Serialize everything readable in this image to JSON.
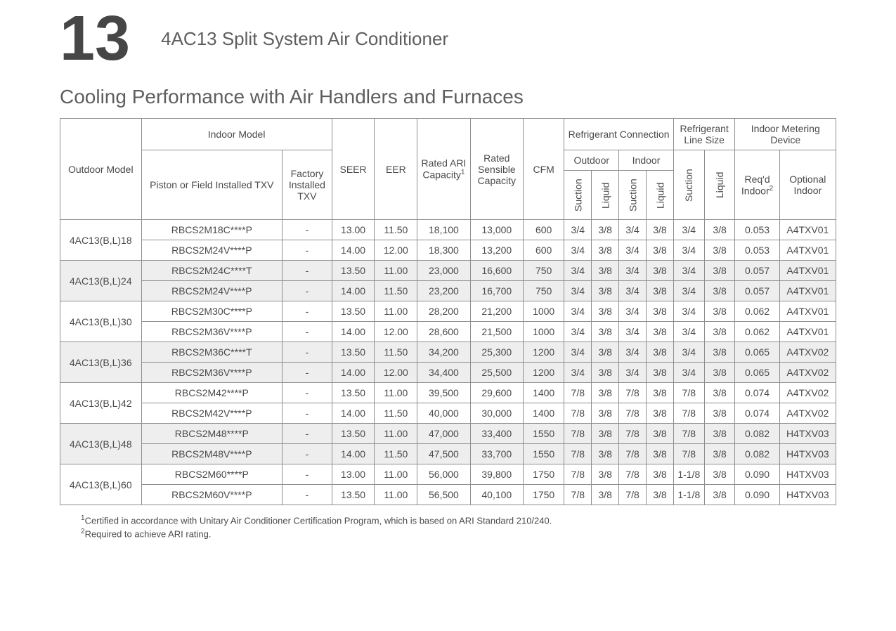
{
  "header": {
    "chapter_number": "13",
    "product_title": "4AC13   Split System Air Conditioner"
  },
  "section_title": "Cooling Performance with Air Handlers and Furnaces",
  "columns": {
    "outdoor_model": "Outdoor Model",
    "indoor_model": "Indoor Model",
    "piston_txv": "Piston or Field Installed TXV",
    "factory_txv": "Factory Installed TXV",
    "seer": "SEER",
    "eer": "EER",
    "rated_ari": "Rated ARI Capacity",
    "rated_ari_sup": "1",
    "rated_sensible": "Rated Sensible Capacity",
    "cfm": "CFM",
    "refrig_conn": "Refrigerant Connection",
    "outdoor": "Outdoor",
    "indoor": "Indoor",
    "refrig_line_size": "Refrigerant Line Size",
    "suction": "Suction",
    "liquid": "Liquid",
    "indoor_metering": "Indoor Metering Device",
    "reqd_indoor": "Req'd Indoor",
    "reqd_indoor_sup": "2",
    "optional_indoor": "Optional Indoor"
  },
  "groups": [
    {
      "outdoor": "4AC13(B,L)18",
      "shade": false,
      "rows": [
        {
          "indoor": "RBCS2M18C****P",
          "txv": "-",
          "seer": "13.00",
          "eer": "11.50",
          "ari": "18,100",
          "sens": "13,000",
          "cfm": "600",
          "oc_s": "3/4",
          "oc_l": "3/8",
          "ic_s": "3/4",
          "ic_l": "3/8",
          "ls_s": "3/4",
          "ls_l": "3/8",
          "req": "0.053",
          "opt": "A4TXV01"
        },
        {
          "indoor": "RBCS2M24V****P",
          "txv": "-",
          "seer": "14.00",
          "eer": "12.00",
          "ari": "18,300",
          "sens": "13,200",
          "cfm": "600",
          "oc_s": "3/4",
          "oc_l": "3/8",
          "ic_s": "3/4",
          "ic_l": "3/8",
          "ls_s": "3/4",
          "ls_l": "3/8",
          "req": "0.053",
          "opt": "A4TXV01"
        }
      ]
    },
    {
      "outdoor": "4AC13(B,L)24",
      "shade": true,
      "rows": [
        {
          "indoor": "RBCS2M24C****T",
          "txv": "-",
          "seer": "13.50",
          "eer": "11.00",
          "ari": "23,000",
          "sens": "16,600",
          "cfm": "750",
          "oc_s": "3/4",
          "oc_l": "3/8",
          "ic_s": "3/4",
          "ic_l": "3/8",
          "ls_s": "3/4",
          "ls_l": "3/8",
          "req": "0.057",
          "opt": "A4TXV01"
        },
        {
          "indoor": "RBCS2M24V****P",
          "txv": "-",
          "seer": "14.00",
          "eer": "11.50",
          "ari": "23,200",
          "sens": "16,700",
          "cfm": "750",
          "oc_s": "3/4",
          "oc_l": "3/8",
          "ic_s": "3/4",
          "ic_l": "3/8",
          "ls_s": "3/4",
          "ls_l": "3/8",
          "req": "0.057",
          "opt": "A4TXV01"
        }
      ]
    },
    {
      "outdoor": "4AC13(B,L)30",
      "shade": false,
      "rows": [
        {
          "indoor": "RBCS2M30C****P",
          "txv": "-",
          "seer": "13.50",
          "eer": "11.00",
          "ari": "28,200",
          "sens": "21,200",
          "cfm": "1000",
          "oc_s": "3/4",
          "oc_l": "3/8",
          "ic_s": "3/4",
          "ic_l": "3/8",
          "ls_s": "3/4",
          "ls_l": "3/8",
          "req": "0.062",
          "opt": "A4TXV01"
        },
        {
          "indoor": "RBCS2M36V****P",
          "txv": "-",
          "seer": "14.00",
          "eer": "12.00",
          "ari": "28,600",
          "sens": "21,500",
          "cfm": "1000",
          "oc_s": "3/4",
          "oc_l": "3/8",
          "ic_s": "3/4",
          "ic_l": "3/8",
          "ls_s": "3/4",
          "ls_l": "3/8",
          "req": "0.062",
          "opt": "A4TXV01"
        }
      ]
    },
    {
      "outdoor": "4AC13(B,L)36",
      "shade": true,
      "rows": [
        {
          "indoor": "RBCS2M36C****T",
          "txv": "-",
          "seer": "13.50",
          "eer": "11.50",
          "ari": "34,200",
          "sens": "25,300",
          "cfm": "1200",
          "oc_s": "3/4",
          "oc_l": "3/8",
          "ic_s": "3/4",
          "ic_l": "3/8",
          "ls_s": "3/4",
          "ls_l": "3/8",
          "req": "0.065",
          "opt": "A4TXV02"
        },
        {
          "indoor": "RBCS2M36V****P",
          "txv": "-",
          "seer": "14.00",
          "eer": "12.00",
          "ari": "34,400",
          "sens": "25,500",
          "cfm": "1200",
          "oc_s": "3/4",
          "oc_l": "3/8",
          "ic_s": "3/4",
          "ic_l": "3/8",
          "ls_s": "3/4",
          "ls_l": "3/8",
          "req": "0.065",
          "opt": "A4TXV02"
        }
      ]
    },
    {
      "outdoor": "4AC13(B,L)42",
      "shade": false,
      "rows": [
        {
          "indoor": "RBCS2M42****P",
          "txv": "-",
          "seer": "13.50",
          "eer": "11.00",
          "ari": "39,500",
          "sens": "29,600",
          "cfm": "1400",
          "oc_s": "7/8",
          "oc_l": "3/8",
          "ic_s": "7/8",
          "ic_l": "3/8",
          "ls_s": "7/8",
          "ls_l": "3/8",
          "req": "0.074",
          "opt": "A4TXV02"
        },
        {
          "indoor": "RBCS2M42V****P",
          "txv": "-",
          "seer": "14.00",
          "eer": "11.50",
          "ari": "40,000",
          "sens": "30,000",
          "cfm": "1400",
          "oc_s": "7/8",
          "oc_l": "3/8",
          "ic_s": "7/8",
          "ic_l": "3/8",
          "ls_s": "7/8",
          "ls_l": "3/8",
          "req": "0.074",
          "opt": "A4TXV02"
        }
      ]
    },
    {
      "outdoor": "4AC13(B,L)48",
      "shade": true,
      "rows": [
        {
          "indoor": "RBCS2M48****P",
          "txv": "-",
          "seer": "13.50",
          "eer": "11.00",
          "ari": "47,000",
          "sens": "33,400",
          "cfm": "1550",
          "oc_s": "7/8",
          "oc_l": "3/8",
          "ic_s": "7/8",
          "ic_l": "3/8",
          "ls_s": "7/8",
          "ls_l": "3/8",
          "req": "0.082",
          "opt": "H4TXV03"
        },
        {
          "indoor": "RBCS2M48V****P",
          "txv": "-",
          "seer": "14.00",
          "eer": "11.50",
          "ari": "47,500",
          "sens": "33,700",
          "cfm": "1550",
          "oc_s": "7/8",
          "oc_l": "3/8",
          "ic_s": "7/8",
          "ic_l": "3/8",
          "ls_s": "7/8",
          "ls_l": "3/8",
          "req": "0.082",
          "opt": "H4TXV03"
        }
      ]
    },
    {
      "outdoor": "4AC13(B,L)60",
      "shade": false,
      "rows": [
        {
          "indoor": "RBCS2M60****P",
          "txv": "-",
          "seer": "13.00",
          "eer": "11.00",
          "ari": "56,000",
          "sens": "39,800",
          "cfm": "1750",
          "oc_s": "7/8",
          "oc_l": "3/8",
          "ic_s": "7/8",
          "ic_l": "3/8",
          "ls_s": "1-1/8",
          "ls_l": "3/8",
          "req": "0.090",
          "opt": "H4TXV03"
        },
        {
          "indoor": "RBCS2M60V****P",
          "txv": "-",
          "seer": "13.50",
          "eer": "11.00",
          "ari": "56,500",
          "sens": "40,100",
          "cfm": "1750",
          "oc_s": "7/8",
          "oc_l": "3/8",
          "ic_s": "7/8",
          "ic_l": "3/8",
          "ls_s": "1-1/8",
          "ls_l": "3/8",
          "req": "0.090",
          "opt": "H4TXV03"
        }
      ]
    }
  ],
  "footnotes": {
    "n1_sup": "1",
    "n1": "Certified in accordance with Unitary Air Conditioner Certification Program, which is based on ARI Standard 210/240.",
    "n2_sup": "2",
    "n2": "Required to achieve ARI rating."
  },
  "style": {
    "text_color": "#4a4a4a",
    "border_color": "#8f8f8f",
    "shade_color": "#eeeeee",
    "background": "#ffffff",
    "header_fontsize": 26,
    "section_fontsize": 28,
    "table_fontsize": 14
  }
}
